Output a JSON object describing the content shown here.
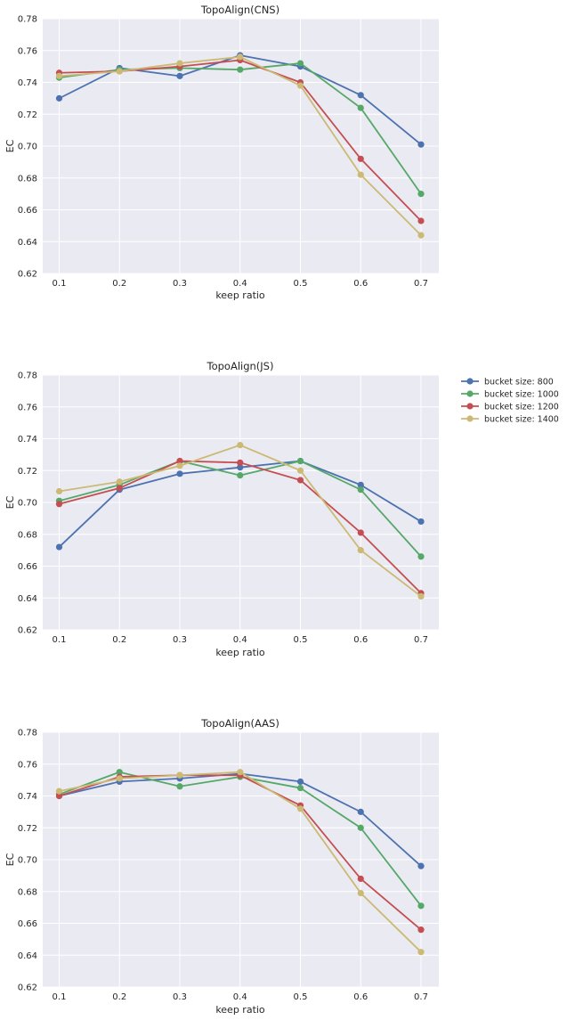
{
  "chart_data": [
    {
      "type": "line",
      "title": "TopoAlign(CNS)",
      "xlabel": "keep ratio",
      "ylabel": "EC",
      "x": [
        0.1,
        0.2,
        0.3,
        0.4,
        0.5,
        0.6,
        0.7
      ],
      "x_tick_labels": [
        "0.1",
        "0.2",
        "0.3",
        "0.4",
        "0.5",
        "0.6",
        "0.7"
      ],
      "ylim": [
        0.62,
        0.78
      ],
      "y_ticks": [
        0.62,
        0.64,
        0.66,
        0.68,
        0.7,
        0.72,
        0.74,
        0.76,
        0.78
      ],
      "y_tick_labels": [
        "0.62",
        "0.64",
        "0.66",
        "0.68",
        "0.70",
        "0.72",
        "0.74",
        "0.76",
        "0.78"
      ],
      "grid": true,
      "series": [
        {
          "name": "bucket size: 800",
          "values": [
            0.73,
            0.749,
            0.744,
            0.757,
            0.75,
            0.732,
            0.701
          ]
        },
        {
          "name": "bucket size: 1000",
          "values": [
            0.743,
            0.748,
            0.749,
            0.748,
            0.752,
            0.724,
            0.67
          ]
        },
        {
          "name": "bucket size: 1200",
          "values": [
            0.746,
            0.747,
            0.75,
            0.754,
            0.74,
            0.692,
            0.653
          ]
        },
        {
          "name": "bucket size: 1400",
          "values": [
            0.744,
            0.747,
            0.752,
            0.756,
            0.738,
            0.682,
            0.644
          ]
        }
      ]
    },
    {
      "type": "line",
      "title": "TopoAlign(JS)",
      "xlabel": "keep ratio",
      "ylabel": "EC",
      "x": [
        0.1,
        0.2,
        0.3,
        0.4,
        0.5,
        0.6,
        0.7
      ],
      "x_tick_labels": [
        "0.1",
        "0.2",
        "0.3",
        "0.4",
        "0.5",
        "0.6",
        "0.7"
      ],
      "ylim": [
        0.62,
        0.78
      ],
      "y_ticks": [
        0.62,
        0.64,
        0.66,
        0.68,
        0.7,
        0.72,
        0.74,
        0.76,
        0.78
      ],
      "y_tick_labels": [
        "0.62",
        "0.64",
        "0.66",
        "0.68",
        "0.70",
        "0.72",
        "0.74",
        "0.76",
        "0.78"
      ],
      "grid": true,
      "legend_position": "outside-right",
      "series": [
        {
          "name": "bucket size: 800",
          "values": [
            0.672,
            0.708,
            0.718,
            0.722,
            0.726,
            0.711,
            0.688
          ]
        },
        {
          "name": "bucket size: 1000",
          "values": [
            0.701,
            0.711,
            0.726,
            0.717,
            0.726,
            0.708,
            0.666
          ]
        },
        {
          "name": "bucket size: 1200",
          "values": [
            0.699,
            0.709,
            0.726,
            0.725,
            0.714,
            0.681,
            0.643
          ]
        },
        {
          "name": "bucket size: 1400",
          "values": [
            0.707,
            0.713,
            0.723,
            0.736,
            0.72,
            0.67,
            0.641
          ]
        }
      ]
    },
    {
      "type": "line",
      "title": "TopoAlign(AAS)",
      "xlabel": "keep ratio",
      "ylabel": "EC",
      "x": [
        0.1,
        0.2,
        0.3,
        0.4,
        0.5,
        0.6,
        0.7
      ],
      "x_tick_labels": [
        "0.1",
        "0.2",
        "0.3",
        "0.4",
        "0.5",
        "0.6",
        "0.7"
      ],
      "ylim": [
        0.62,
        0.78
      ],
      "y_ticks": [
        0.62,
        0.64,
        0.66,
        0.68,
        0.7,
        0.72,
        0.74,
        0.76,
        0.78
      ],
      "y_tick_labels": [
        "0.62",
        "0.64",
        "0.66",
        "0.68",
        "0.70",
        "0.72",
        "0.74",
        "0.76",
        "0.78"
      ],
      "grid": true,
      "series": [
        {
          "name": "bucket size: 800",
          "values": [
            0.74,
            0.749,
            0.751,
            0.754,
            0.749,
            0.73,
            0.696
          ]
        },
        {
          "name": "bucket size: 1000",
          "values": [
            0.741,
            0.755,
            0.746,
            0.752,
            0.745,
            0.72,
            0.671
          ]
        },
        {
          "name": "bucket size: 1200",
          "values": [
            0.74,
            0.752,
            0.753,
            0.753,
            0.734,
            0.688,
            0.656
          ]
        },
        {
          "name": "bucket size: 1400",
          "values": [
            0.743,
            0.751,
            0.753,
            0.755,
            0.732,
            0.679,
            0.642
          ]
        }
      ]
    }
  ],
  "legend": {
    "items": [
      {
        "label": "bucket size: 800",
        "color": "#4C72B0"
      },
      {
        "label": "bucket size: 1000",
        "color": "#55A868"
      },
      {
        "label": "bucket size: 1200",
        "color": "#C44E52"
      },
      {
        "label": "bucket size: 1400",
        "color": "#CCB974"
      }
    ]
  },
  "colors": {
    "plot_background": "#EAEAF2",
    "grid": "#FFFFFF",
    "text": "#262626",
    "series": [
      "#4C72B0",
      "#55A868",
      "#C44E52",
      "#CCB974"
    ]
  }
}
